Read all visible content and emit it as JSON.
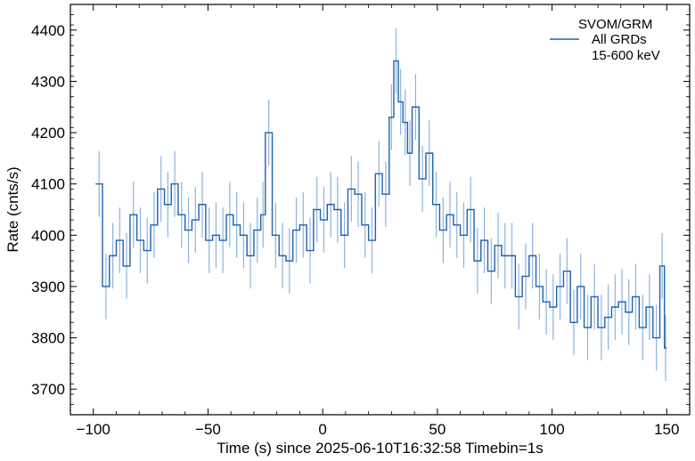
{
  "chart_data": {
    "type": "line",
    "title": "",
    "xlabel": "Time (s) since 2025-06-10T16:32:58 Timebin=1s",
    "ylabel": "Rate (cnts/s)",
    "xlim": [
      -110,
      160
    ],
    "ylim": [
      3650,
      4450
    ],
    "xticks": [
      -100,
      -50,
      0,
      50,
      100,
      150
    ],
    "xtick_labels": [
      "−100",
      "−50",
      "0",
      "50",
      "100",
      "150"
    ],
    "yticks": [
      3700,
      3800,
      3900,
      4000,
      4100,
      4200,
      4300,
      4400
    ],
    "ytick_labels": [
      "3700",
      "3800",
      "3900",
      "4000",
      "4100",
      "4200",
      "4300",
      "4400"
    ],
    "grid": false,
    "legend": {
      "placement": "top-right",
      "title": "SVOM/GRM",
      "entries": [
        "All GRDs",
        "15-600 keV"
      ]
    },
    "series": [
      {
        "name": "All GRDs",
        "color": "#1f62ad",
        "errorbar_color": "#8db3da",
        "step": true,
        "error": 64,
        "x": [
          -99,
          -96,
          -93,
          -90,
          -87,
          -84,
          -81,
          -78,
          -75,
          -72,
          -69,
          -66,
          -63,
          -60,
          -57,
          -54,
          -51,
          -48,
          -45,
          -42,
          -39,
          -36,
          -33,
          -30,
          -27,
          -25,
          -22,
          -19,
          -16,
          -13,
          -10,
          -7,
          -4,
          -1,
          2,
          5,
          8,
          11,
          14,
          17,
          20,
          23,
          26,
          29,
          31,
          33,
          35,
          37,
          39,
          42,
          45,
          48,
          51,
          54,
          57,
          60,
          63,
          66,
          69,
          72,
          75,
          78,
          81,
          84,
          87,
          90,
          93,
          96,
          99,
          102,
          105,
          108,
          111,
          114,
          117,
          120,
          123,
          126,
          129,
          132,
          135,
          138,
          141,
          144,
          147,
          149
        ],
        "y": [
          4100,
          3900,
          3960,
          3990,
          3940,
          4040,
          3990,
          3970,
          4020,
          4090,
          4060,
          4100,
          4040,
          4010,
          4030,
          4060,
          3990,
          4000,
          3990,
          4040,
          4020,
          4000,
          3960,
          4010,
          4040,
          4200,
          4000,
          3960,
          3950,
          4010,
          4020,
          3970,
          4050,
          4030,
          4060,
          4050,
          4000,
          4090,
          4080,
          4020,
          3990,
          4120,
          4080,
          4230,
          4340,
          4260,
          4220,
          4160,
          4250,
          4110,
          4160,
          4060,
          4010,
          4040,
          4020,
          4000,
          4050,
          3950,
          3990,
          3930,
          3980,
          3960,
          3960,
          3880,
          3920,
          3960,
          3900,
          3870,
          3860,
          3900,
          3930,
          3830,
          3900,
          3820,
          3880,
          3820,
          3840,
          3860,
          3870,
          3850,
          3880,
          3820,
          3860,
          3800,
          3940,
          3780
        ]
      }
    ]
  }
}
